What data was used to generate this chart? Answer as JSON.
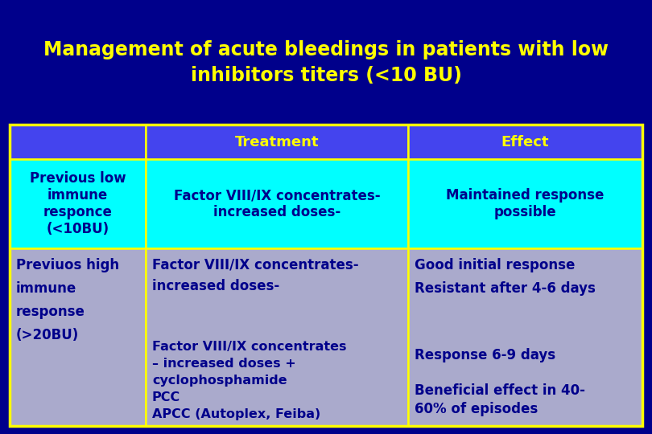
{
  "title": "Management of acute bleedings in patients with low\ninhibitors titers (<10 BU)",
  "title_color": "#FFFF00",
  "bg_color": "#00008B",
  "table_border_color": "#FFFF00",
  "header_bg": "#4444EE",
  "header_text_color": "#FFFF00",
  "row1_bg": "#00FFFF",
  "row1_text_color": "#00008B",
  "row2_bg": "#AAAACC",
  "row2_text_color": "#00008B",
  "col_labels": [
    "",
    "Treatment",
    "Effect"
  ],
  "row1_col0": "Previous low\nimmune\nresponce\n(<10BU)",
  "row1_col1": "Factor VIII/IX concentrates-\nincreased doses-",
  "row1_col2": "Maintained response\npossible",
  "row2_col0": "Previuos high\nimmune\nresponse\n(>20BU)",
  "row2_col1a": "Factor VIII/IX concentrates-\nincreased doses-",
  "row2_col1b": "Factor VIII/IX concentrates\n– increased doses +\ncyclophosphamide\nPCC\nAPCC (Autoplex, Feiba)",
  "row2_col2a": "Good initial response\nResistant after 4-6 days",
  "row2_col2b": "Response 6-9 days",
  "row2_col2c": "Beneficial effect in 40-\n60% of episodes"
}
